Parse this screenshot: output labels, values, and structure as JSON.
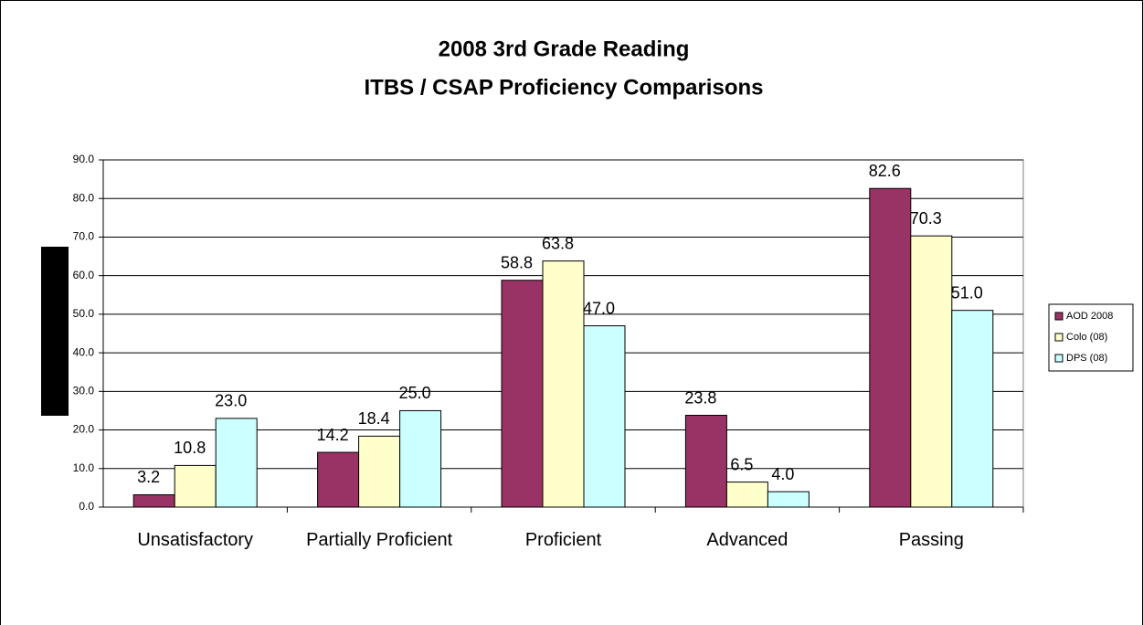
{
  "chart_data": {
    "type": "bar",
    "title": "2008 3rd Grade Reading",
    "subtitle": "ITBS / CSAP Proficiency Comparisons",
    "categories": [
      "Unsatisfactory",
      "Partially Proficient",
      "Proficient",
      "Advanced",
      "Passing"
    ],
    "series": [
      {
        "name": "AOD 2008",
        "color": "#993366",
        "values": [
          3.2,
          14.2,
          58.8,
          23.8,
          82.6
        ],
        "value_labels": [
          "3.2",
          "14.2",
          "58.8",
          "23.8",
          "82.6"
        ]
      },
      {
        "name": "Colo (08)",
        "color": "#FFFFCC",
        "values": [
          10.8,
          18.4,
          63.8,
          6.5,
          70.3
        ],
        "value_labels": [
          "10.8",
          "18.4",
          "63.8",
          "6.5",
          "70.3"
        ]
      },
      {
        "name": "DPS (08)",
        "color": "#CCFFFF",
        "values": [
          23,
          25,
          47,
          4,
          51
        ],
        "value_labels": [
          "23.0",
          "25.0",
          "47.0",
          "4.0",
          "51.0"
        ]
      }
    ],
    "ylim": [
      0,
      90
    ],
    "yticks": [
      {
        "value": 0,
        "label": "0.0"
      },
      {
        "value": 10,
        "label": "10.0"
      },
      {
        "value": 20,
        "label": "20.0"
      },
      {
        "value": 30,
        "label": "30.0"
      },
      {
        "value": 40,
        "label": "40.0"
      },
      {
        "value": 50,
        "label": "50.0"
      },
      {
        "value": 60,
        "label": "60.0"
      },
      {
        "value": 70,
        "label": "70.0"
      },
      {
        "value": 80,
        "label": "80.0"
      },
      {
        "value": 90,
        "label": "90.0"
      }
    ],
    "grid": true,
    "legend": "right"
  }
}
